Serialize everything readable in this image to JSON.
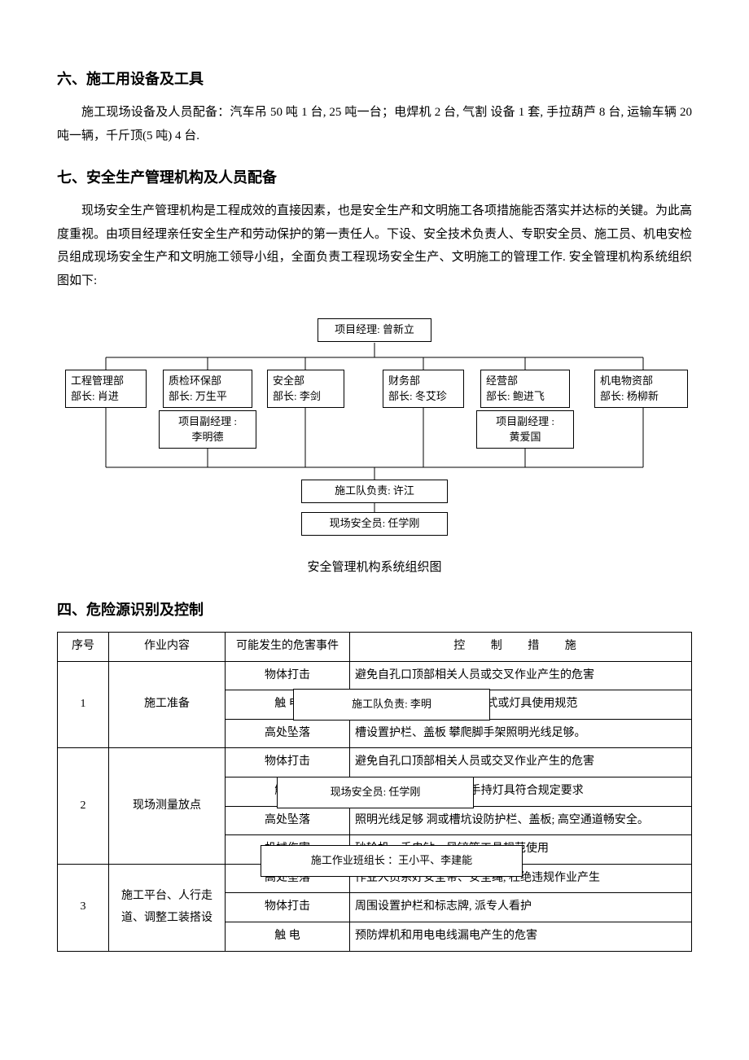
{
  "sections": {
    "s6_title": "六、施工用设备及工具",
    "s6_body": "施工现场设备及人员配备：汽车吊 50 吨 1 台, 25 吨一台；电焊机 2 台, 气割 设备 1 套, 手拉葫芦 8 台, 运输车辆 20 吨一辆，千斤顶(5 吨) 4 台.",
    "s7_title": "七、安全生产管理机构及人员配备",
    "s7_body": "现场安全生产管理机构是工程成效的直接因素，也是安全生产和文明施工各项措施能否落实并达标的关键。为此高度重视。由项目经理亲任安全生产和劳动保护的第一责任人。下设、安全技术负责人、专职安全员、施工员、机电安检员组成现场安全生产和文明施工领导小组，全面负责工程现场安全生产、文明施工的管理工作. 安全管理机构系统组织图如下:",
    "s4_title": "四、危险源识别及控制"
  },
  "orgchart": {
    "caption": "安全管理机构系统组织图",
    "top": {
      "line1": "项目经理: 曾新立"
    },
    "dept1": {
      "l1": "工程管理部",
      "l2": "部长: 肖进"
    },
    "dept2": {
      "l1": "质检环保部",
      "l2": "部长: 万生平"
    },
    "dept3": {
      "l1": "安全部",
      "l2": "部长: 李剑"
    },
    "dept4": {
      "l1": "财务部",
      "l2": "部长: 冬艾珍"
    },
    "dept5": {
      "l1": "经营部",
      "l2": "部长: 鲍进飞"
    },
    "dept6": {
      "l1": "机电物资部",
      "l2": "部长: 杨柳新"
    },
    "vp1": {
      "l1": "项目副经理 :",
      "l2": "李明德"
    },
    "vp2": {
      "l1": "项目副经理 :",
      "l2": "黄爱国"
    },
    "team_leader": "施工队负责: 许江",
    "safety_officer": "现场安全员: 任学刚",
    "float_team": "施工队负责: 李明",
    "float_safety": "现场安全员: 任学刚",
    "float_group": "施工作业班组长 ：王小平、李建能"
  },
  "hazards": {
    "headers": {
      "seq": "序号",
      "task": "作业内容",
      "event": "可能发生的危害事件",
      "measure": "控 制 措 施"
    },
    "rows": [
      {
        "seq": "1",
        "task": "施工准备",
        "events": [
          "物体打击",
          "触 电",
          "高处坠落"
        ],
        "measures": [
          "避免自孔口顶部相关人员或交叉作业产生的危害",
          "场地和水清理干净; 接线方式或灯具使用规范",
          "槽设置护栏、盖板 攀爬脚手架照明光线足够。"
        ]
      },
      {
        "seq": "2",
        "task": "现场测量放点",
        "events": [
          "物体打击",
          "触 电",
          "高处坠落",
          "机械伤害"
        ],
        "measures": [
          "避免自孔口顶部相关人员或交叉作业产生的危害",
          "; 检查电线路是否漏电; 手持灯具符合规定要求",
          "照明光线足够 洞或槽坑设防护栏、盖板; 高空通道畅安全。",
          "砂轮机、手电钻、风铲等工具规范使用"
        ]
      },
      {
        "seq": "3",
        "task": "施工平台、人行走道、调整工装搭设",
        "events": [
          "高处坠落",
          "物体打击",
          "触 电"
        ],
        "measures": [
          "作业人员系好安全带、安全绳, 杜绝违规作业产生",
          "周围设置护栏和标志牌, 派专人看护",
          "预防焊机和用电电线漏电产生的危害"
        ]
      }
    ]
  }
}
